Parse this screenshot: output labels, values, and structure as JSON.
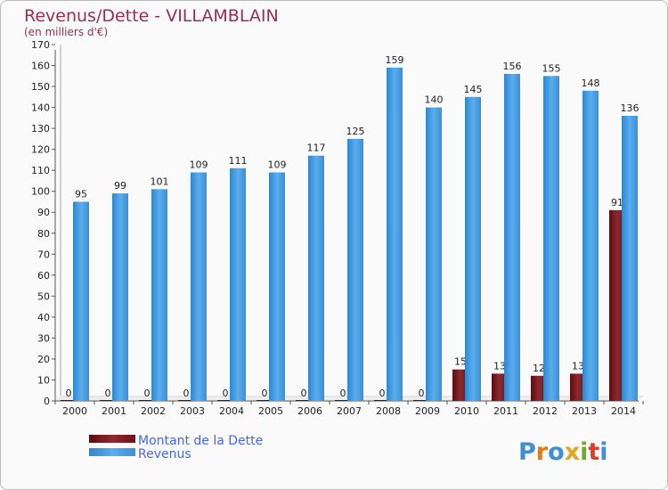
{
  "chart_data": {
    "type": "bar",
    "title": "Revenus/Dette - VILLAMBLAIN",
    "subtitle": "(en milliers d'€)",
    "categories": [
      "2000",
      "2001",
      "2002",
      "2003",
      "2004",
      "2005",
      "2006",
      "2007",
      "2008",
      "2009",
      "2010",
      "2011",
      "2012",
      "2013",
      "2014"
    ],
    "series": [
      {
        "name": "Montant de la Dette",
        "color": "#7a1518",
        "values": [
          0,
          0,
          0,
          0,
          0,
          0,
          0,
          0,
          0,
          0,
          15,
          13,
          12,
          13,
          91
        ]
      },
      {
        "name": "Revenus",
        "color": "#4fa3e6",
        "values": [
          95,
          99,
          101,
          109,
          111,
          109,
          117,
          125,
          159,
          140,
          145,
          156,
          155,
          148,
          136
        ]
      }
    ],
    "ylim": [
      0,
      170
    ],
    "ytick_step": 10,
    "grid": false,
    "legend": "bottom-left"
  },
  "logo": {
    "text": "Proxiti"
  }
}
